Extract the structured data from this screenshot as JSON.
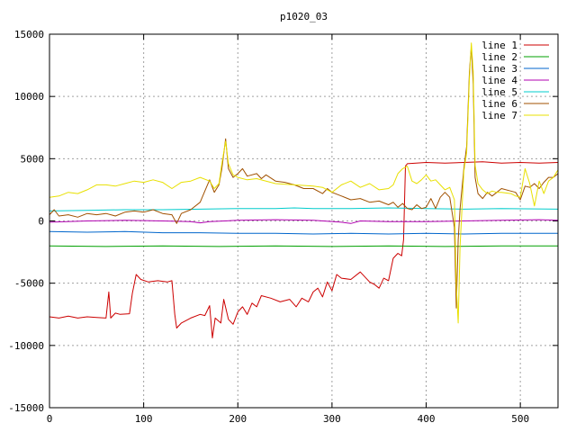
{
  "chart_data": {
    "type": "line",
    "title": "p1020_03",
    "xlabel": "",
    "ylabel": "",
    "xlim": [
      0,
      540
    ],
    "ylim": [
      -15000,
      15000
    ],
    "xticks": [
      0,
      100,
      200,
      300,
      400,
      500
    ],
    "yticks": [
      -15000,
      -10000,
      -5000,
      0,
      5000,
      10000,
      15000
    ],
    "grid": true,
    "legend_position": "top-right",
    "series": [
      {
        "name": "line 1",
        "color": "#cc0000",
        "points": [
          [
            0,
            -7700
          ],
          [
            10,
            -7800
          ],
          [
            20,
            -7650
          ],
          [
            30,
            -7800
          ],
          [
            40,
            -7700
          ],
          [
            50,
            -7750
          ],
          [
            60,
            -7800
          ],
          [
            63,
            -5700
          ],
          [
            65,
            -7800
          ],
          [
            70,
            -7400
          ],
          [
            75,
            -7500
          ],
          [
            85,
            -7450
          ],
          [
            88,
            -5800
          ],
          [
            92,
            -4300
          ],
          [
            97,
            -4700
          ],
          [
            105,
            -4900
          ],
          [
            115,
            -4800
          ],
          [
            125,
            -4900
          ],
          [
            130,
            -4800
          ],
          [
            133,
            -7500
          ],
          [
            135,
            -8600
          ],
          [
            140,
            -8200
          ],
          [
            150,
            -7800
          ],
          [
            160,
            -7500
          ],
          [
            165,
            -7600
          ],
          [
            170,
            -6800
          ],
          [
            173,
            -9400
          ],
          [
            176,
            -7800
          ],
          [
            182,
            -8200
          ],
          [
            185,
            -6300
          ],
          [
            190,
            -7900
          ],
          [
            195,
            -8300
          ],
          [
            200,
            -7300
          ],
          [
            205,
            -6900
          ],
          [
            210,
            -7500
          ],
          [
            215,
            -6600
          ],
          [
            220,
            -6900
          ],
          [
            225,
            -6000
          ],
          [
            235,
            -6200
          ],
          [
            245,
            -6500
          ],
          [
            255,
            -6300
          ],
          [
            262,
            -6900
          ],
          [
            268,
            -6200
          ],
          [
            275,
            -6500
          ],
          [
            280,
            -5700
          ],
          [
            285,
            -5400
          ],
          [
            290,
            -6100
          ],
          [
            295,
            -4900
          ],
          [
            300,
            -5600
          ],
          [
            305,
            -4300
          ],
          [
            310,
            -4600
          ],
          [
            320,
            -4700
          ],
          [
            330,
            -4100
          ],
          [
            340,
            -4900
          ],
          [
            345,
            -5100
          ],
          [
            350,
            -5400
          ],
          [
            355,
            -4600
          ],
          [
            360,
            -4800
          ],
          [
            365,
            -3000
          ],
          [
            370,
            -2600
          ],
          [
            374,
            -2800
          ],
          [
            376,
            -1500
          ],
          [
            378,
            4400
          ],
          [
            380,
            4600
          ],
          [
            400,
            4700
          ],
          [
            420,
            4650
          ],
          [
            440,
            4700
          ],
          [
            460,
            4750
          ],
          [
            480,
            4650
          ],
          [
            500,
            4700
          ],
          [
            520,
            4650
          ],
          [
            540,
            4700
          ]
        ]
      },
      {
        "name": "line 2",
        "color": "#00a000",
        "points": [
          [
            0,
            -2000
          ],
          [
            60,
            -2050
          ],
          [
            120,
            -2000
          ],
          [
            180,
            -2050
          ],
          [
            240,
            -2000
          ],
          [
            300,
            -2050
          ],
          [
            360,
            -2000
          ],
          [
            420,
            -2050
          ],
          [
            480,
            -2000
          ],
          [
            540,
            -2000
          ]
        ]
      },
      {
        "name": "line 3",
        "color": "#0066cc",
        "points": [
          [
            0,
            -850
          ],
          [
            40,
            -900
          ],
          [
            80,
            -850
          ],
          [
            120,
            -950
          ],
          [
            160,
            -950
          ],
          [
            200,
            -1000
          ],
          [
            240,
            -1000
          ],
          [
            280,
            -1050
          ],
          [
            320,
            -1000
          ],
          [
            360,
            -1050
          ],
          [
            400,
            -1000
          ],
          [
            440,
            -1050
          ],
          [
            480,
            -1000
          ],
          [
            540,
            -1000
          ]
        ]
      },
      {
        "name": "line 4",
        "color": "#b000b0",
        "points": [
          [
            0,
            -100
          ],
          [
            40,
            0
          ],
          [
            80,
            50
          ],
          [
            120,
            0
          ],
          [
            150,
            -50
          ],
          [
            160,
            -150
          ],
          [
            170,
            -50
          ],
          [
            200,
            50
          ],
          [
            240,
            100
          ],
          [
            280,
            50
          ],
          [
            310,
            -100
          ],
          [
            320,
            -200
          ],
          [
            330,
            0
          ],
          [
            360,
            -50
          ],
          [
            400,
            -50
          ],
          [
            440,
            0
          ],
          [
            480,
            50
          ],
          [
            520,
            100
          ],
          [
            540,
            50
          ]
        ]
      },
      {
        "name": "line 5",
        "color": "#00cccc",
        "points": [
          [
            0,
            800
          ],
          [
            40,
            850
          ],
          [
            80,
            900
          ],
          [
            120,
            900
          ],
          [
            160,
            950
          ],
          [
            200,
            1000
          ],
          [
            240,
            1000
          ],
          [
            260,
            1050
          ],
          [
            280,
            1000
          ],
          [
            320,
            1000
          ],
          [
            360,
            1050
          ],
          [
            400,
            1000
          ],
          [
            440,
            950
          ],
          [
            480,
            1000
          ],
          [
            540,
            950
          ]
        ]
      },
      {
        "name": "line 6",
        "color": "#a05000",
        "points": [
          [
            0,
            500
          ],
          [
            5,
            900
          ],
          [
            10,
            400
          ],
          [
            20,
            500
          ],
          [
            30,
            300
          ],
          [
            40,
            600
          ],
          [
            50,
            500
          ],
          [
            60,
            600
          ],
          [
            70,
            400
          ],
          [
            80,
            700
          ],
          [
            90,
            800
          ],
          [
            100,
            700
          ],
          [
            110,
            900
          ],
          [
            120,
            600
          ],
          [
            130,
            500
          ],
          [
            135,
            -200
          ],
          [
            140,
            600
          ],
          [
            150,
            900
          ],
          [
            160,
            1500
          ],
          [
            165,
            2400
          ],
          [
            170,
            3300
          ],
          [
            175,
            2300
          ],
          [
            180,
            2900
          ],
          [
            183,
            4200
          ],
          [
            187,
            6600
          ],
          [
            190,
            4200
          ],
          [
            195,
            3500
          ],
          [
            200,
            3800
          ],
          [
            205,
            4200
          ],
          [
            210,
            3600
          ],
          [
            220,
            3800
          ],
          [
            225,
            3400
          ],
          [
            230,
            3700
          ],
          [
            240,
            3200
          ],
          [
            250,
            3100
          ],
          [
            260,
            2900
          ],
          [
            270,
            2600
          ],
          [
            280,
            2600
          ],
          [
            290,
            2200
          ],
          [
            295,
            2600
          ],
          [
            300,
            2300
          ],
          [
            310,
            2000
          ],
          [
            320,
            1700
          ],
          [
            330,
            1800
          ],
          [
            340,
            1500
          ],
          [
            350,
            1600
          ],
          [
            360,
            1300
          ],
          [
            365,
            1500
          ],
          [
            370,
            1100
          ],
          [
            375,
            1400
          ],
          [
            380,
            1000
          ],
          [
            385,
            900
          ],
          [
            390,
            1300
          ],
          [
            395,
            1000
          ],
          [
            400,
            1100
          ],
          [
            405,
            1800
          ],
          [
            410,
            1000
          ],
          [
            415,
            1900
          ],
          [
            420,
            2300
          ],
          [
            425,
            1900
          ],
          [
            430,
            -500
          ],
          [
            432,
            -7000
          ],
          [
            434,
            -1500
          ],
          [
            436,
            1000
          ],
          [
            440,
            4200
          ],
          [
            443,
            6000
          ],
          [
            446,
            12000
          ],
          [
            448,
            14000
          ],
          [
            450,
            11000
          ],
          [
            452,
            3500
          ],
          [
            455,
            2200
          ],
          [
            460,
            1800
          ],
          [
            465,
            2300
          ],
          [
            470,
            2000
          ],
          [
            475,
            2300
          ],
          [
            480,
            2600
          ],
          [
            490,
            2400
          ],
          [
            495,
            2300
          ],
          [
            500,
            1700
          ],
          [
            505,
            2800
          ],
          [
            510,
            2700
          ],
          [
            515,
            3000
          ],
          [
            520,
            2600
          ],
          [
            525,
            3100
          ],
          [
            530,
            3500
          ],
          [
            535,
            3500
          ],
          [
            540,
            3800
          ]
        ]
      },
      {
        "name": "line 7",
        "color": "#e8e000",
        "points": [
          [
            0,
            1900
          ],
          [
            10,
            2000
          ],
          [
            20,
            2300
          ],
          [
            30,
            2200
          ],
          [
            40,
            2500
          ],
          [
            50,
            2900
          ],
          [
            60,
            2900
          ],
          [
            70,
            2800
          ],
          [
            80,
            3000
          ],
          [
            90,
            3200
          ],
          [
            100,
            3100
          ],
          [
            110,
            3300
          ],
          [
            120,
            3100
          ],
          [
            130,
            2600
          ],
          [
            140,
            3100
          ],
          [
            150,
            3200
          ],
          [
            160,
            3500
          ],
          [
            170,
            3200
          ],
          [
            175,
            2600
          ],
          [
            180,
            3000
          ],
          [
            183,
            4600
          ],
          [
            187,
            6400
          ],
          [
            190,
            4600
          ],
          [
            195,
            3700
          ],
          [
            200,
            3500
          ],
          [
            210,
            3300
          ],
          [
            220,
            3400
          ],
          [
            240,
            3000
          ],
          [
            260,
            2900
          ],
          [
            280,
            2800
          ],
          [
            290,
            2700
          ],
          [
            300,
            2300
          ],
          [
            310,
            2900
          ],
          [
            320,
            3200
          ],
          [
            330,
            2700
          ],
          [
            340,
            3000
          ],
          [
            350,
            2500
          ],
          [
            360,
            2600
          ],
          [
            365,
            2900
          ],
          [
            370,
            3800
          ],
          [
            375,
            4200
          ],
          [
            380,
            4400
          ],
          [
            385,
            3200
          ],
          [
            390,
            3000
          ],
          [
            395,
            3300
          ],
          [
            400,
            3700
          ],
          [
            405,
            3200
          ],
          [
            410,
            3300
          ],
          [
            415,
            2900
          ],
          [
            420,
            2500
          ],
          [
            425,
            2700
          ],
          [
            430,
            1700
          ],
          [
            432,
            -5200
          ],
          [
            434,
            -8200
          ],
          [
            436,
            -2000
          ],
          [
            440,
            4000
          ],
          [
            443,
            5500
          ],
          [
            446,
            11500
          ],
          [
            448,
            14300
          ],
          [
            450,
            12000
          ],
          [
            452,
            4500
          ],
          [
            455,
            3000
          ],
          [
            460,
            2500
          ],
          [
            465,
            2200
          ],
          [
            470,
            2400
          ],
          [
            475,
            2300
          ],
          [
            480,
            2300
          ],
          [
            490,
            2200
          ],
          [
            495,
            2000
          ],
          [
            500,
            1900
          ],
          [
            505,
            4200
          ],
          [
            510,
            3000
          ],
          [
            515,
            1200
          ],
          [
            520,
            3200
          ],
          [
            525,
            2200
          ],
          [
            530,
            3200
          ],
          [
            535,
            3500
          ],
          [
            540,
            4100
          ]
        ]
      }
    ]
  }
}
